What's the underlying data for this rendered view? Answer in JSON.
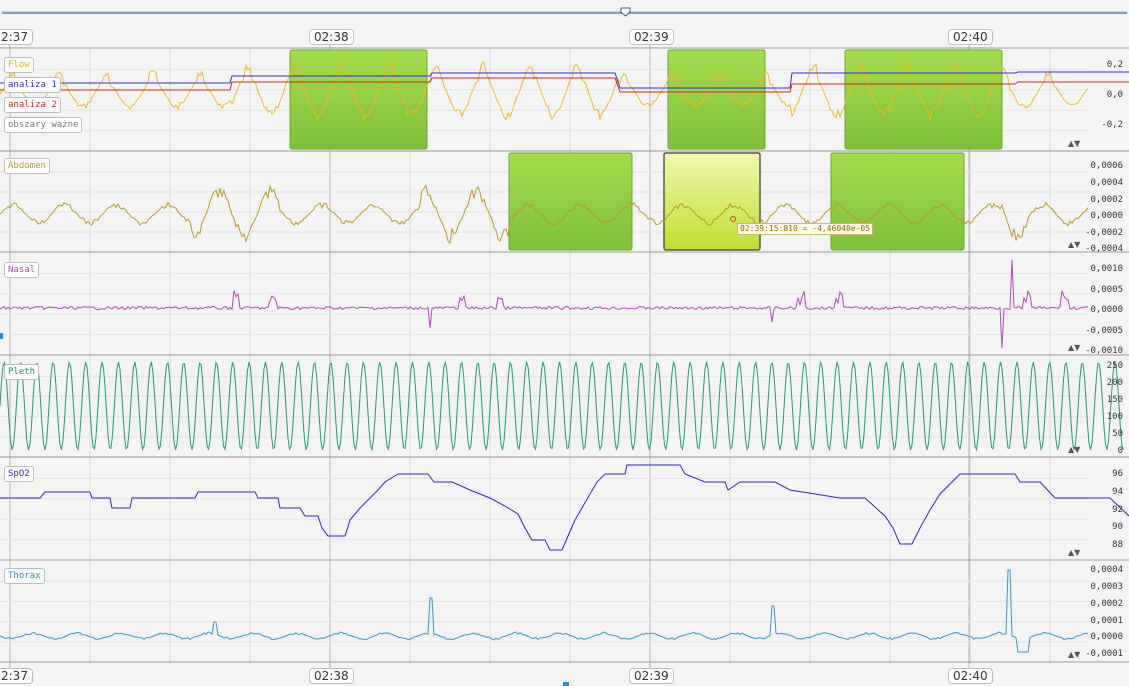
{
  "timeline": {
    "top_labels": [
      "2:37",
      "02:38",
      "02:39",
      "02:40"
    ],
    "bottom_labels": [
      "2:37",
      "02:38",
      "02:39",
      "02:40"
    ]
  },
  "panels": [
    {
      "id": "flow",
      "labels": [
        {
          "text": "Flow",
          "color": "#e6b21c"
        },
        {
          "text": "analiza 1",
          "color": "#3a2fbf"
        },
        {
          "text": "analiza 2",
          "color": "#d0281e"
        },
        {
          "text": "obszary ważne",
          "color": "#777777"
        }
      ],
      "yticks": [
        "0,2",
        "0,0",
        "-0,2"
      ],
      "wave_color": "#f0b820"
    },
    {
      "id": "abdomen",
      "labels": [
        {
          "text": "Abdomen",
          "color": "#b89b2a"
        }
      ],
      "yticks": [
        "0,0006",
        "0,0004",
        "0,0002",
        "0,0000",
        "-0,0002",
        "-0,0004"
      ],
      "wave_color": "#b89b2a"
    },
    {
      "id": "nasal",
      "labels": [
        {
          "text": "Nasal",
          "color": "#b04ab8"
        }
      ],
      "yticks": [
        "0,0010",
        "0,0005",
        "0,0000",
        "-0,0005",
        "-0,0010"
      ],
      "wave_color": "#b04ab8"
    },
    {
      "id": "pleth",
      "labels": [
        {
          "text": "Pleth",
          "color": "#1a8f70"
        }
      ],
      "yticks": [
        "250",
        "200",
        "150",
        "100",
        "50",
        "0"
      ],
      "wave_color": "#1f9a78"
    },
    {
      "id": "spo2",
      "labels": [
        {
          "text": "SpO2",
          "color": "#2a2ab8"
        }
      ],
      "yticks": [
        "96",
        "94",
        "92",
        "90",
        "88"
      ],
      "wave_color": "#2a2ab8"
    },
    {
      "id": "thorax",
      "labels": [
        {
          "text": "Thorax",
          "color": "#2a8ac0"
        }
      ],
      "yticks": [
        "0,0004",
        "0,0003",
        "0,0002",
        "0,0001",
        "0,0000",
        "-0,0001"
      ],
      "wave_color": "#3a96c8"
    }
  ],
  "cursor_tooltip": "02:39:15:810 = -4,46040e-05",
  "scale_icon": "scale-arrows-icon",
  "colors": {
    "region_green": "#8fd23a",
    "region_selected": "#d8ec60",
    "analiza1": "#3a2fbf",
    "analiza2": "#d0281e"
  }
}
